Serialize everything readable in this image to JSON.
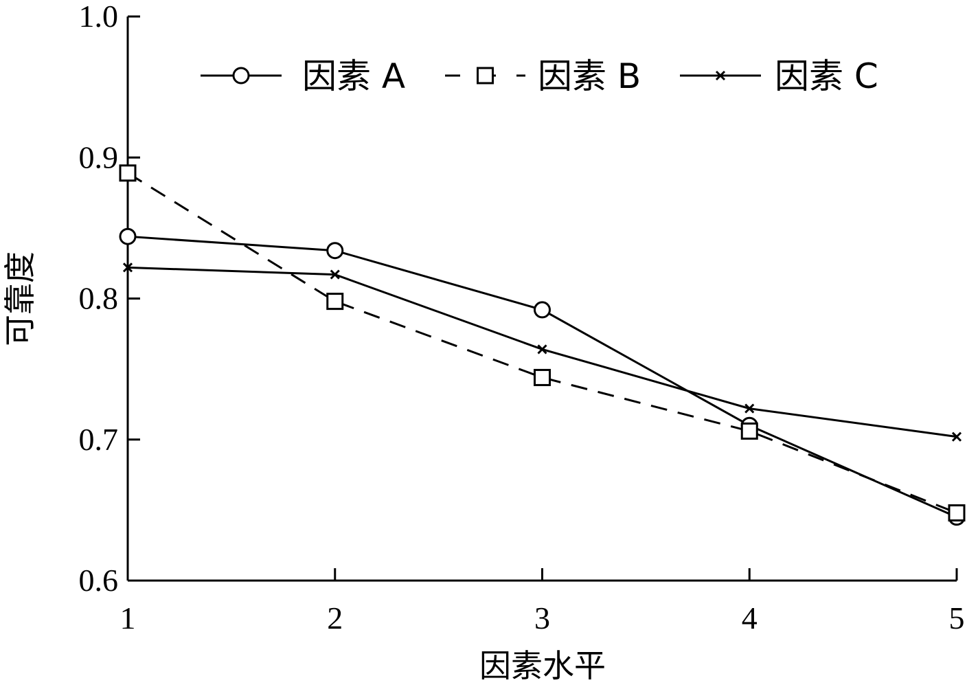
{
  "chart_data": {
    "type": "line",
    "title": "",
    "xlabel": "因素水平",
    "ylabel": "可靠度",
    "x": [
      1,
      2,
      3,
      4,
      5
    ],
    "xticks": [
      "1",
      "2",
      "3",
      "4",
      "5"
    ],
    "xlim": [
      1,
      5
    ],
    "ylim": [
      0.6,
      1.0
    ],
    "yticks": [
      "0.6",
      "0.7",
      "0.8",
      "0.9",
      "1.0"
    ],
    "ytick_values": [
      0.6,
      0.7,
      0.8,
      0.9,
      1.0
    ],
    "grid": false,
    "legend": "top",
    "series": [
      {
        "name": "因素 A",
        "marker": "circle",
        "line": "solid",
        "values": [
          0.844,
          0.834,
          0.792,
          0.71,
          0.645
        ]
      },
      {
        "name": "因素 B",
        "marker": "square",
        "line": "dashed",
        "values": [
          0.889,
          0.798,
          0.744,
          0.706,
          0.648
        ]
      },
      {
        "name": "因素 C",
        "marker": "x",
        "line": "solid",
        "values": [
          0.822,
          0.817,
          0.764,
          0.722,
          0.702
        ]
      }
    ],
    "color": "#000000"
  }
}
